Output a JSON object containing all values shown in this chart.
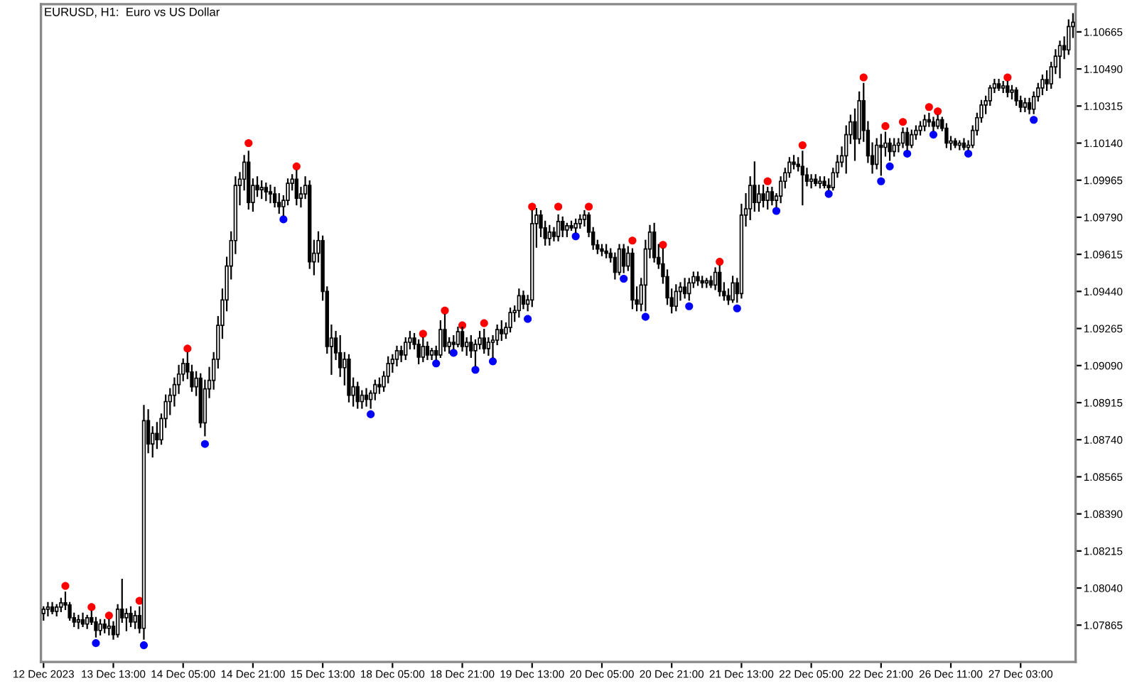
{
  "chart_data": {
    "type": "candlestick",
    "title": "EURUSD, H1:  Euro vs US Dollar",
    "categories": [
      "12 Dec 2023",
      null,
      null,
      null,
      null,
      null,
      null,
      null,
      null,
      null,
      null,
      null,
      null,
      null,
      null,
      null,
      "13 Dec 13:00",
      null,
      null,
      null,
      null,
      null,
      null,
      null,
      null,
      null,
      null,
      null,
      null,
      null,
      null,
      null,
      "14 Dec 05:00",
      null,
      null,
      null,
      null,
      null,
      null,
      null,
      null,
      null,
      null,
      null,
      null,
      null,
      null,
      null,
      "14 Dec 21:00",
      null,
      null,
      null,
      null,
      null,
      null,
      null,
      null,
      null,
      null,
      null,
      null,
      null,
      null,
      null,
      "15 Dec 13:00",
      null,
      null,
      null,
      null,
      null,
      null,
      null,
      null,
      null,
      null,
      null,
      null,
      null,
      null,
      null,
      "18 Dec 05:00",
      null,
      null,
      null,
      null,
      null,
      null,
      null,
      null,
      null,
      null,
      null,
      null,
      null,
      null,
      null,
      "18 Dec 21:00",
      null,
      null,
      null,
      null,
      null,
      null,
      null,
      null,
      null,
      null,
      null,
      null,
      null,
      null,
      null,
      "19 Dec 13:00",
      null,
      null,
      null,
      null,
      null,
      null,
      null,
      null,
      null,
      null,
      null,
      null,
      null,
      null,
      null,
      "20 Dec 05:00",
      null,
      null,
      null,
      null,
      null,
      null,
      null,
      null,
      null,
      null,
      null,
      null,
      null,
      null,
      null,
      "20 Dec 21:00",
      null,
      null,
      null,
      null,
      null,
      null,
      null,
      null,
      null,
      null,
      null,
      null,
      null,
      null,
      null,
      "21 Dec 13:00",
      null,
      null,
      null,
      null,
      null,
      null,
      null,
      null,
      null,
      null,
      null,
      null,
      null,
      null,
      null,
      "22 Dec 05:00",
      null,
      null,
      null,
      null,
      null,
      null,
      null,
      null,
      null,
      null,
      null,
      null,
      null,
      null,
      null,
      "22 Dec 21:00",
      null,
      null,
      null,
      null,
      null,
      null,
      null,
      null,
      null,
      null,
      null,
      null,
      null,
      null,
      null,
      "26 Dec 11:00",
      null,
      null,
      null,
      null,
      null,
      null,
      null,
      null,
      null,
      null,
      null,
      null,
      null,
      null,
      null,
      "27 Dec 03:00",
      null,
      null,
      null,
      null,
      null,
      null,
      null,
      null,
      null,
      null,
      null,
      null
    ],
    "ohlc": [
      [
        1.0792,
        1.0795,
        1.0789,
        1.0794
      ],
      [
        1.0794,
        1.0797,
        1.0791,
        1.0795
      ],
      [
        1.0795,
        1.0797,
        1.0792,
        1.0793
      ],
      [
        1.0793,
        1.0796,
        1.0791,
        1.0795
      ],
      [
        1.0795,
        1.0799,
        1.0793,
        1.0797
      ],
      [
        1.0797,
        1.0802,
        1.0794,
        1.0796
      ],
      [
        1.0796,
        1.0797,
        1.0789,
        1.079
      ],
      [
        1.079,
        1.0792,
        1.0786,
        1.0788
      ],
      [
        1.0788,
        1.0791,
        1.0785,
        1.0789
      ],
      [
        1.0789,
        1.0792,
        1.0786,
        1.0787
      ],
      [
        1.0787,
        1.0791,
        1.0785,
        1.079
      ],
      [
        1.079,
        1.0793,
        1.0787,
        1.0788
      ],
      [
        1.0788,
        1.079,
        1.0781,
        1.0784
      ],
      [
        1.0784,
        1.0789,
        1.0782,
        1.0787
      ],
      [
        1.0787,
        1.0789,
        1.0783,
        1.0785
      ],
      [
        1.0785,
        1.0789,
        1.0782,
        1.0786
      ],
      [
        1.0786,
        1.0788,
        1.078,
        1.0782
      ],
      [
        1.0782,
        1.0796,
        1.0781,
        1.0794
      ],
      [
        1.0794,
        1.0808,
        1.0788,
        1.079
      ],
      [
        1.079,
        1.0794,
        1.0784,
        1.0792
      ],
      [
        1.0792,
        1.0795,
        1.0786,
        1.0788
      ],
      [
        1.0788,
        1.0793,
        1.0785,
        1.0791
      ],
      [
        1.0791,
        1.0795,
        1.0783,
        1.0785
      ],
      [
        1.0785,
        1.089,
        1.078,
        1.0883
      ],
      [
        1.0883,
        1.0888,
        1.0868,
        1.0872
      ],
      [
        1.0872,
        1.088,
        1.0866,
        1.0877
      ],
      [
        1.0877,
        1.0882,
        1.087,
        1.0874
      ],
      [
        1.0874,
        1.0886,
        1.0872,
        1.0884
      ],
      [
        1.0884,
        1.0895,
        1.088,
        1.0892
      ],
      [
        1.0892,
        1.0898,
        1.0886,
        1.0895
      ],
      [
        1.0895,
        1.0903,
        1.089,
        1.09
      ],
      [
        1.09,
        1.0909,
        1.0896,
        1.0905
      ],
      [
        1.0905,
        1.0912,
        1.0902,
        1.091
      ],
      [
        1.091,
        1.0915,
        1.0903,
        1.0906
      ],
      [
        1.0906,
        1.0909,
        1.0897,
        1.0899
      ],
      [
        1.0899,
        1.0906,
        1.0895,
        1.0903
      ],
      [
        1.0903,
        1.0905,
        1.088,
        1.0882
      ],
      [
        1.0882,
        1.0902,
        1.0876,
        1.0898
      ],
      [
        1.0898,
        1.0908,
        1.0894,
        1.0902
      ],
      [
        1.0902,
        1.0915,
        1.0898,
        1.0912
      ],
      [
        1.0912,
        1.0932,
        1.0908,
        1.0928
      ],
      [
        1.0928,
        1.0945,
        1.0922,
        1.094
      ],
      [
        1.094,
        1.096,
        1.0935,
        1.0956
      ],
      [
        1.0956,
        1.0972,
        1.095,
        1.0968
      ],
      [
        1.0968,
        1.0998,
        1.0962,
        1.0994
      ],
      [
        1.0994,
        1.1,
        1.0985,
        1.0997
      ],
      [
        1.0997,
        1.1008,
        1.0992,
        1.1005
      ],
      [
        1.1005,
        1.101,
        1.0983,
        1.0986
      ],
      [
        1.0986,
        1.0997,
        1.0982,
        1.0994
      ],
      [
        1.0994,
        1.0998,
        1.0989,
        1.0992
      ],
      [
        1.0992,
        1.0996,
        1.0988,
        1.0993
      ],
      [
        1.0993,
        1.0995,
        1.0987,
        1.0991
      ],
      [
        1.0991,
        1.0994,
        1.0986,
        1.099
      ],
      [
        1.099,
        1.0993,
        1.0984,
        1.0986
      ],
      [
        1.0986,
        1.099,
        1.0981,
        1.0984
      ],
      [
        1.0984,
        1.0989,
        1.098,
        1.0987
      ],
      [
        1.0987,
        1.0997,
        1.0985,
        1.0995
      ],
      [
        1.0995,
        1.0999,
        1.0992,
        1.0997
      ],
      [
        1.0997,
        1.1001,
        1.0985,
        1.0988
      ],
      [
        1.0988,
        1.0993,
        1.0984,
        1.099
      ],
      [
        1.099,
        1.0998,
        1.0988,
        1.0994
      ],
      [
        1.0994,
        1.0996,
        1.0955,
        1.0958
      ],
      [
        1.0958,
        1.0968,
        1.0952,
        1.0962
      ],
      [
        1.0962,
        1.0972,
        1.0958,
        1.0968
      ],
      [
        1.0968,
        1.097,
        1.094,
        1.0944
      ],
      [
        1.0944,
        1.0946,
        1.0915,
        1.0918
      ],
      [
        1.0918,
        1.0928,
        1.0905,
        1.0922
      ],
      [
        1.0922,
        1.0925,
        1.0912,
        1.0915
      ],
      [
        1.0915,
        1.0923,
        1.0904,
        1.0908
      ],
      [
        1.0908,
        1.0915,
        1.09,
        1.0912
      ],
      [
        1.0912,
        1.0914,
        1.0892,
        1.0895
      ],
      [
        1.0895,
        1.0903,
        1.089,
        1.0899
      ],
      [
        1.0899,
        1.0901,
        1.0889,
        1.0892
      ],
      [
        1.0892,
        1.0897,
        1.0889,
        1.0895
      ],
      [
        1.0895,
        1.0898,
        1.089,
        1.0893
      ],
      [
        1.0893,
        1.0897,
        1.0889,
        1.0896
      ],
      [
        1.0896,
        1.0902,
        1.0893,
        1.09
      ],
      [
        1.09,
        1.0903,
        1.0896,
        1.0899
      ],
      [
        1.0899,
        1.0906,
        1.0897,
        1.0904
      ],
      [
        1.0904,
        1.0913,
        1.0901,
        1.091
      ],
      [
        1.091,
        1.0914,
        1.0906,
        1.0912
      ],
      [
        1.0912,
        1.0918,
        1.0909,
        1.0916
      ],
      [
        1.0916,
        1.0918,
        1.0911,
        1.0914
      ],
      [
        1.0914,
        1.0922,
        1.0912,
        1.092
      ],
      [
        1.092,
        1.0925,
        1.0917,
        1.0922
      ],
      [
        1.0922,
        1.0924,
        1.0917,
        1.0919
      ],
      [
        1.0919,
        1.0921,
        1.091,
        1.0913
      ],
      [
        1.0913,
        1.0922,
        1.0911,
        1.0918
      ],
      [
        1.0918,
        1.092,
        1.0912,
        1.0914
      ],
      [
        1.0914,
        1.0917,
        1.0912,
        1.0916
      ],
      [
        1.0916,
        1.0918,
        1.0912,
        1.0914
      ],
      [
        1.0914,
        1.093,
        1.0913,
        1.0926
      ],
      [
        1.0926,
        1.0933,
        1.0916,
        1.0918
      ],
      [
        1.0918,
        1.0922,
        1.0915,
        1.092
      ],
      [
        1.092,
        1.0923,
        1.0917,
        1.0919
      ],
      [
        1.0919,
        1.0927,
        1.0918,
        1.0925
      ],
      [
        1.0925,
        1.0927,
        1.0916,
        1.0918
      ],
      [
        1.0918,
        1.0922,
        1.0914,
        1.092
      ],
      [
        1.092,
        1.0923,
        1.0913,
        1.0916
      ],
      [
        1.0916,
        1.0921,
        1.0909,
        1.0919
      ],
      [
        1.0919,
        1.0925,
        1.0917,
        1.0922
      ],
      [
        1.0922,
        1.0926,
        1.0915,
        1.0917
      ],
      [
        1.0917,
        1.0922,
        1.0914,
        1.092
      ],
      [
        1.092,
        1.0923,
        1.0913,
        1.0921
      ],
      [
        1.0921,
        1.0928,
        1.0919,
        1.0926
      ],
      [
        1.0926,
        1.093,
        1.0921,
        1.0924
      ],
      [
        1.0924,
        1.0929,
        1.0922,
        1.0927
      ],
      [
        1.0927,
        1.0936,
        1.0925,
        1.0934
      ],
      [
        1.0934,
        1.0937,
        1.093,
        1.0935
      ],
      [
        1.0935,
        1.0945,
        1.0932,
        1.0942
      ],
      [
        1.0942,
        1.0944,
        1.0936,
        1.0938
      ],
      [
        1.0938,
        1.0942,
        1.0935,
        1.094
      ],
      [
        1.094,
        1.0982,
        1.0937,
        1.0976
      ],
      [
        1.0976,
        1.0983,
        1.0965,
        1.098
      ],
      [
        1.098,
        1.0982,
        1.097,
        1.0974
      ],
      [
        1.0974,
        1.0977,
        1.0966,
        1.0969
      ],
      [
        1.0969,
        1.0975,
        1.0966,
        1.0972
      ],
      [
        1.0972,
        1.0974,
        1.0968,
        1.097
      ],
      [
        1.097,
        1.098,
        1.0968,
        1.0977
      ],
      [
        1.0977,
        1.0979,
        1.097,
        1.0973
      ],
      [
        1.0973,
        1.0976,
        1.097,
        1.0975
      ],
      [
        1.0975,
        1.0977,
        1.0973,
        1.0974
      ],
      [
        1.0974,
        1.0978,
        1.0972,
        1.0976
      ],
      [
        1.0976,
        1.098,
        1.0974,
        1.0978
      ],
      [
        1.0978,
        1.0982,
        1.0975,
        1.098
      ],
      [
        1.098,
        1.0981,
        1.097,
        1.0972
      ],
      [
        1.0972,
        1.0974,
        1.0964,
        1.0966
      ],
      [
        1.0966,
        1.0968,
        1.0962,
        1.0964
      ],
      [
        1.0964,
        1.0966,
        1.0961,
        1.0963
      ],
      [
        1.0963,
        1.0966,
        1.096,
        1.0962
      ],
      [
        1.0962,
        1.0964,
        1.0958,
        1.096
      ],
      [
        1.096,
        1.0962,
        1.095,
        1.0953
      ],
      [
        1.0953,
        1.0966,
        1.0952,
        1.0964
      ],
      [
        1.0964,
        1.0966,
        1.0953,
        1.0956
      ],
      [
        1.0956,
        1.0965,
        1.0954,
        1.0962
      ],
      [
        1.0962,
        1.0964,
        1.0936,
        1.094
      ],
      [
        1.094,
        1.0946,
        1.0935,
        1.0938
      ],
      [
        1.0938,
        1.095,
        1.0935,
        1.0947
      ],
      [
        1.0947,
        1.0968,
        1.0935,
        1.0964
      ],
      [
        1.0964,
        1.0975,
        1.096,
        1.0972
      ],
      [
        1.0972,
        1.0976,
        1.0958,
        1.096
      ],
      [
        1.096,
        1.0966,
        1.0955,
        1.0957
      ],
      [
        1.0957,
        1.0964,
        1.0948,
        1.0951
      ],
      [
        1.0951,
        1.0954,
        1.0938,
        1.0941
      ],
      [
        1.0941,
        1.0945,
        1.0934,
        1.0937
      ],
      [
        1.0937,
        1.0947,
        1.0935,
        1.0944
      ],
      [
        1.0944,
        1.0948,
        1.094,
        1.0946
      ],
      [
        1.0946,
        1.095,
        1.0941,
        1.0943
      ],
      [
        1.0943,
        1.095,
        1.094,
        1.0948
      ],
      [
        1.0948,
        1.0953,
        1.0946,
        1.0951
      ],
      [
        1.0951,
        1.0953,
        1.0947,
        1.0949
      ],
      [
        1.0949,
        1.0951,
        1.0946,
        1.0948
      ],
      [
        1.0948,
        1.095,
        1.0946,
        1.0949
      ],
      [
        1.0949,
        1.0951,
        1.0946,
        1.0947
      ],
      [
        1.0947,
        1.0955,
        1.0945,
        1.0953
      ],
      [
        1.0953,
        1.0956,
        1.0942,
        1.0944
      ],
      [
        1.0944,
        1.0948,
        1.094,
        1.0942
      ],
      [
        1.0942,
        1.0945,
        1.0938,
        1.094
      ],
      [
        1.094,
        1.0951,
        1.0939,
        1.0948
      ],
      [
        1.0948,
        1.095,
        1.0939,
        1.0943
      ],
      [
        1.0943,
        1.0985,
        1.0941,
        1.098
      ],
      [
        1.098,
        1.099,
        1.0975,
        1.0983
      ],
      [
        1.0983,
        1.0998,
        1.0978,
        1.0994
      ],
      [
        1.0994,
        1.1005,
        1.0982,
        1.0986
      ],
      [
        1.0986,
        1.0994,
        1.0982,
        1.099
      ],
      [
        1.099,
        1.0994,
        1.0984,
        1.0987
      ],
      [
        1.0987,
        1.0993,
        1.0983,
        1.0991
      ],
      [
        1.0991,
        1.0993,
        1.0985,
        1.0987
      ],
      [
        1.0987,
        1.099,
        1.0984,
        1.0989
      ],
      [
        1.0989,
        1.0998,
        1.0986,
        1.0996
      ],
      [
        1.0996,
        1.1002,
        1.0993,
        1.1
      ],
      [
        1.1,
        1.1007,
        1.0998,
        1.1005
      ],
      [
        1.1005,
        1.1008,
        1.1002,
        1.1004
      ],
      [
        1.1004,
        1.1007,
        1.1001,
        1.1003
      ],
      [
        1.1003,
        1.101,
        1.0985,
        1.0999
      ],
      [
        1.0999,
        1.1002,
        1.0994,
        1.0996
      ],
      [
        1.0996,
        1.0999,
        1.0993,
        1.0997
      ],
      [
        1.0997,
        1.0999,
        1.0994,
        1.0995
      ],
      [
        1.0995,
        1.0998,
        1.0993,
        1.0996
      ],
      [
        1.0996,
        1.0998,
        1.0993,
        1.0994
      ],
      [
        1.0994,
        1.0997,
        1.0992,
        1.0993
      ],
      [
        1.0993,
        1.1002,
        1.0992,
        1.1
      ],
      [
        1.1,
        1.1008,
        1.0998,
        1.1005
      ],
      [
        1.1005,
        1.1012,
        1.1003,
        1.1008
      ],
      [
        1.1008,
        1.1022,
        1.1,
        1.1018
      ],
      [
        1.1018,
        1.1027,
        1.1014,
        1.1024
      ],
      [
        1.1024,
        1.103,
        1.1006,
        1.1016
      ],
      [
        1.1016,
        1.1038,
        1.1014,
        1.1034
      ],
      [
        1.1034,
        1.1042,
        1.1015,
        1.102
      ],
      [
        1.102,
        1.1024,
        1.1005,
        1.1008
      ],
      [
        1.1008,
        1.1014,
        1.1,
        1.1004
      ],
      [
        1.1004,
        1.1016,
        1.1002,
        1.1013
      ],
      [
        1.1013,
        1.1018,
        1.0999,
        1.1012
      ],
      [
        1.1012,
        1.1019,
        1.1008,
        1.1014
      ],
      [
        1.1014,
        1.1016,
        1.1006,
        1.101
      ],
      [
        1.101,
        1.1016,
        1.1008,
        1.1013
      ],
      [
        1.1013,
        1.1016,
        1.101,
        1.1014
      ],
      [
        1.1014,
        1.1021,
        1.1012,
        1.1019
      ],
      [
        1.1019,
        1.1021,
        1.1011,
        1.1013
      ],
      [
        1.1013,
        1.102,
        1.1012,
        1.1018
      ],
      [
        1.1018,
        1.1022,
        1.1016,
        1.102
      ],
      [
        1.102,
        1.1024,
        1.1018,
        1.1022
      ],
      [
        1.1022,
        1.1027,
        1.102,
        1.1025
      ],
      [
        1.1025,
        1.1028,
        1.1022,
        1.1024
      ],
      [
        1.1024,
        1.1026,
        1.102,
        1.1022
      ],
      [
        1.1022,
        1.1027,
        1.1021,
        1.1025
      ],
      [
        1.1025,
        1.1026,
        1.102,
        1.1021
      ],
      [
        1.1021,
        1.1023,
        1.1012,
        1.1014
      ],
      [
        1.1014,
        1.1017,
        1.1011,
        1.1015
      ],
      [
        1.1015,
        1.1016,
        1.1012,
        1.1013
      ],
      [
        1.1013,
        1.1015,
        1.1011,
        1.1014
      ],
      [
        1.1014,
        1.1016,
        1.1011,
        1.1012
      ],
      [
        1.1012,
        1.1015,
        1.1011,
        1.1013
      ],
      [
        1.1013,
        1.1022,
        1.1012,
        1.102
      ],
      [
        1.102,
        1.1028,
        1.1018,
        1.1026
      ],
      [
        1.1026,
        1.1034,
        1.1024,
        1.1032
      ],
      [
        1.1032,
        1.1036,
        1.1028,
        1.1034
      ],
      [
        1.1034,
        1.1041,
        1.1032,
        1.104
      ],
      [
        1.104,
        1.1044,
        1.1038,
        1.1042
      ],
      [
        1.1042,
        1.1044,
        1.1039,
        1.104
      ],
      [
        1.104,
        1.1043,
        1.1038,
        1.1041
      ],
      [
        1.1041,
        1.1043,
        1.1036,
        1.1038
      ],
      [
        1.1038,
        1.1041,
        1.1035,
        1.1039
      ],
      [
        1.1039,
        1.104,
        1.1032,
        1.1034
      ],
      [
        1.1034,
        1.1036,
        1.1029,
        1.1031
      ],
      [
        1.1031,
        1.1035,
        1.1029,
        1.1033
      ],
      [
        1.1033,
        1.1035,
        1.1028,
        1.103
      ],
      [
        1.103,
        1.1038,
        1.1028,
        1.1036
      ],
      [
        1.1036,
        1.1042,
        1.1034,
        1.104
      ],
      [
        1.104,
        1.1046,
        1.1037,
        1.1044
      ],
      [
        1.1044,
        1.1048,
        1.1039,
        1.1042
      ],
      [
        1.1042,
        1.1052,
        1.104,
        1.105
      ],
      [
        1.105,
        1.1058,
        1.1047,
        1.1055
      ],
      [
        1.1055,
        1.1062,
        1.1045,
        1.106
      ],
      [
        1.106,
        1.1064,
        1.1054,
        1.1058
      ],
      [
        1.1058,
        1.1072,
        1.1056,
        1.1069
      ],
      [
        1.1069,
        1.1075,
        1.1064,
        1.1071
      ]
    ],
    "series": [
      {
        "type": "scatter",
        "color": "#ff0000",
        "values": [
          null,
          null,
          null,
          null,
          null,
          1.0805,
          null,
          null,
          null,
          null,
          null,
          1.0795,
          null,
          null,
          null,
          1.0791,
          null,
          null,
          null,
          null,
          null,
          null,
          1.0798,
          null,
          null,
          null,
          null,
          null,
          null,
          null,
          null,
          null,
          null,
          1.0917,
          null,
          null,
          null,
          null,
          null,
          null,
          null,
          null,
          null,
          null,
          null,
          null,
          null,
          1.1014,
          null,
          null,
          null,
          null,
          null,
          null,
          null,
          null,
          null,
          null,
          1.1003,
          null,
          null,
          null,
          null,
          null,
          null,
          null,
          null,
          null,
          null,
          null,
          null,
          null,
          null,
          null,
          null,
          null,
          null,
          null,
          null,
          null,
          null,
          null,
          null,
          null,
          null,
          null,
          null,
          1.0924,
          null,
          null,
          null,
          null,
          1.0935,
          null,
          null,
          null,
          1.0928,
          null,
          null,
          null,
          null,
          1.0929,
          null,
          null,
          null,
          null,
          null,
          null,
          null,
          null,
          null,
          null,
          1.0984,
          null,
          null,
          null,
          null,
          null,
          1.0984,
          null,
          null,
          null,
          null,
          null,
          null,
          1.0984,
          null,
          null,
          null,
          null,
          null,
          null,
          null,
          null,
          null,
          1.0968,
          null,
          null,
          null,
          null,
          null,
          null,
          1.0966,
          null,
          null,
          null,
          null,
          null,
          null,
          null,
          null,
          null,
          null,
          null,
          null,
          1.0958,
          null,
          null,
          null,
          null,
          null,
          null,
          null,
          null,
          null,
          null,
          1.0996,
          null,
          null,
          null,
          null,
          null,
          null,
          null,
          1.1013,
          null,
          null,
          null,
          null,
          null,
          null,
          null,
          null,
          null,
          null,
          null,
          null,
          null,
          1.1045,
          null,
          null,
          null,
          null,
          1.1022,
          null,
          null,
          null,
          1.1024,
          null,
          null,
          null,
          null,
          null,
          1.1031,
          null,
          1.1029,
          null,
          null,
          null,
          null,
          null,
          null,
          null,
          null,
          null,
          null,
          null,
          null,
          null,
          null,
          null,
          1.1045,
          null,
          null,
          null,
          null,
          null,
          null,
          null,
          null,
          null,
          null,
          null,
          null,
          null,
          null,
          null
        ]
      },
      {
        "type": "scatter",
        "color": "#0000ff",
        "values": [
          null,
          null,
          null,
          null,
          null,
          null,
          null,
          null,
          null,
          null,
          null,
          null,
          1.0778,
          null,
          null,
          null,
          null,
          null,
          null,
          null,
          null,
          null,
          null,
          1.0777,
          null,
          null,
          null,
          null,
          null,
          null,
          null,
          null,
          null,
          null,
          null,
          null,
          null,
          1.0872,
          null,
          null,
          null,
          null,
          null,
          null,
          null,
          null,
          null,
          null,
          null,
          null,
          null,
          null,
          null,
          null,
          null,
          1.0978,
          null,
          null,
          null,
          null,
          null,
          null,
          null,
          null,
          null,
          null,
          null,
          null,
          null,
          null,
          null,
          null,
          null,
          null,
          null,
          1.0886,
          null,
          null,
          null,
          null,
          null,
          null,
          null,
          null,
          null,
          null,
          null,
          null,
          null,
          null,
          1.091,
          null,
          null,
          null,
          1.0915,
          null,
          null,
          null,
          null,
          1.0907,
          null,
          null,
          null,
          1.0911,
          null,
          null,
          null,
          null,
          null,
          null,
          null,
          1.0931,
          null,
          null,
          null,
          null,
          null,
          null,
          null,
          null,
          null,
          null,
          1.097,
          null,
          null,
          null,
          null,
          null,
          null,
          null,
          null,
          null,
          null,
          1.095,
          null,
          null,
          null,
          null,
          1.0932,
          null,
          null,
          null,
          null,
          null,
          null,
          null,
          null,
          null,
          1.0937,
          null,
          null,
          null,
          null,
          null,
          null,
          null,
          null,
          null,
          null,
          1.0936,
          null,
          null,
          null,
          null,
          null,
          null,
          null,
          null,
          1.0982,
          null,
          null,
          null,
          null,
          null,
          null,
          null,
          null,
          null,
          null,
          null,
          1.099,
          null,
          null,
          null,
          null,
          null,
          null,
          null,
          null,
          null,
          null,
          null,
          1.0996,
          null,
          1.1003,
          null,
          null,
          null,
          1.1009,
          null,
          null,
          null,
          null,
          null,
          1.1018,
          null,
          null,
          null,
          null,
          null,
          null,
          null,
          1.1009,
          null,
          null,
          null,
          null,
          null,
          null,
          null,
          null,
          null,
          null,
          null,
          null,
          null,
          null,
          1.1025,
          null,
          null,
          null,
          null,
          null,
          null,
          null,
          null,
          null
        ]
      }
    ],
    "marker": "circle",
    "ylim": [
      1.07691,
      1.10796
    ],
    "yticks": [
      1.07865,
      {
        "value": 1.0804,
        "label": "1.08040"
      },
      1.08215,
      {
        "value": 1.0839,
        "label": "1.08390"
      },
      1.08565,
      {
        "value": 1.0874,
        "label": "1.08740"
      },
      1.08915,
      {
        "value": 1.0909,
        "label": "1.09090"
      },
      1.09265,
      {
        "value": 1.0944,
        "label": "1.09440"
      },
      1.09615,
      {
        "value": 1.0979,
        "label": "1.09790"
      },
      1.09965,
      {
        "value": 1.1014,
        "label": "1.10140"
      },
      1.10315,
      {
        "value": 1.1049,
        "label": "1.10490"
      },
      1.10665
    ]
  }
}
